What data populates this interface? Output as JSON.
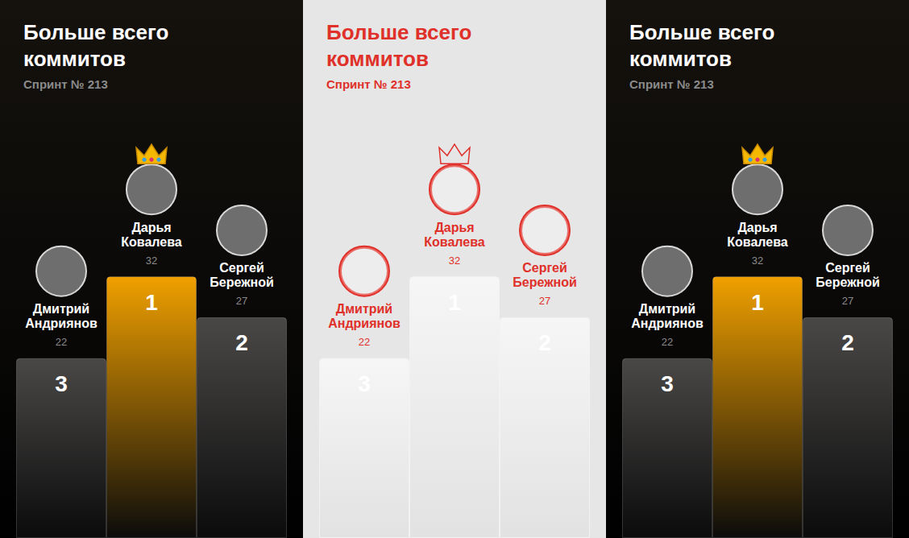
{
  "chart_data": [
    {
      "type": "bar",
      "title": "Больше всего\nкоммитов",
      "subtitle": "Спринт № 213",
      "categories": [
        "Дмитрий\nАндриянов",
        "Дарья\nКовалева",
        "Сергей\nБережной"
      ],
      "values": [
        22,
        32,
        27
      ],
      "places": [
        3,
        1,
        2
      ],
      "colors": [
        "#4a4847",
        "#f0a000",
        "#4a4847"
      ],
      "ylim": [
        0,
        40
      ],
      "tick_labels": false,
      "data_labels": true
    },
    {
      "type": "bar",
      "title": "Больше всего\nкоммитов",
      "subtitle": "Спринт № 213",
      "categories": [
        "Дмитрий\nАндриянов",
        "Дарья\nКовалева",
        "Сергей\nБережной"
      ],
      "values": [
        22,
        32,
        27
      ],
      "places": [
        3,
        1,
        2
      ],
      "colors": [
        "#f6f6f6",
        "#f6f6f6",
        "#f6f6f6"
      ],
      "ylim": [
        0,
        40
      ],
      "tick_labels": false,
      "data_labels": true
    },
    {
      "type": "bar",
      "title": "Больше всего\nкоммитов",
      "subtitle": "Спринт № 213",
      "categories": [
        "Дмитрий\nАндриянов",
        "Дарья\nКовалева",
        "Сергей\nБережной"
      ],
      "values": [
        22,
        32,
        27
      ],
      "places": [
        3,
        1,
        2
      ],
      "colors": [
        "#4a4847",
        "#f0a000",
        "#4a4847"
      ],
      "ylim": [
        0,
        40
      ],
      "tick_labels": false,
      "data_labels": true
    }
  ]
}
